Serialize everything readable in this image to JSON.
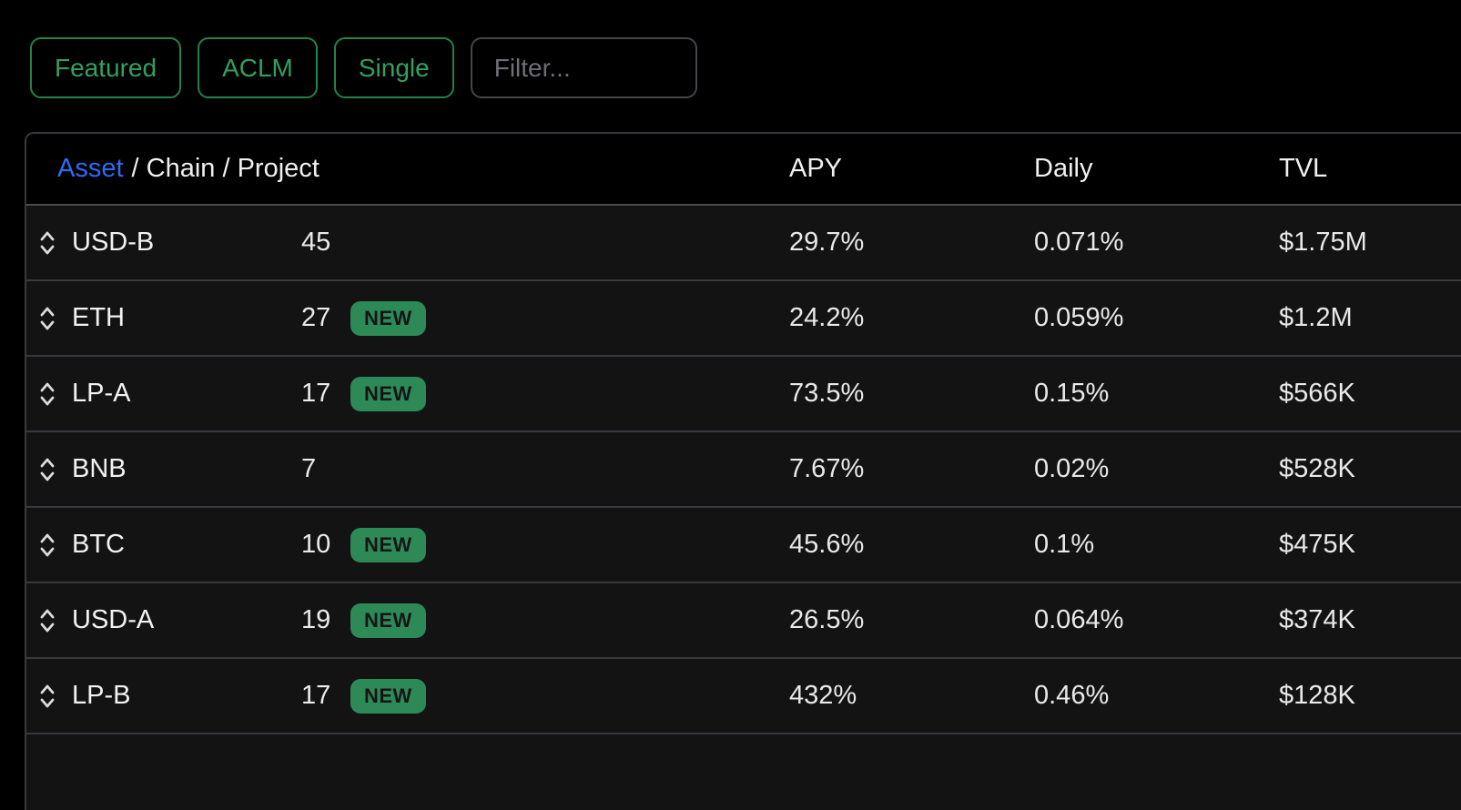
{
  "toolbar": {
    "buttons": [
      {
        "label": "Featured"
      },
      {
        "label": "ACLM"
      },
      {
        "label": "Single"
      }
    ],
    "filter_placeholder": "Filter...",
    "filter_value": ""
  },
  "table": {
    "header": {
      "asset_link": "Asset",
      "asset_rest": "/ Chain / Project",
      "apy": "APY",
      "daily": "Daily",
      "tvl": "TVL"
    },
    "badge_label": "NEW",
    "rows": [
      {
        "asset": "USD-B",
        "count": "45",
        "new": false,
        "apy": "29.7%",
        "daily": "0.071%",
        "tvl": "$1.75M"
      },
      {
        "asset": "ETH",
        "count": "27",
        "new": true,
        "apy": "24.2%",
        "daily": "0.059%",
        "tvl": "$1.2M"
      },
      {
        "asset": "LP-A",
        "count": "17",
        "new": true,
        "apy": "73.5%",
        "daily": "0.15%",
        "tvl": "$566K"
      },
      {
        "asset": "BNB",
        "count": "7",
        "new": false,
        "apy": "7.67%",
        "daily": "0.02%",
        "tvl": "$528K"
      },
      {
        "asset": "BTC",
        "count": "10",
        "new": true,
        "apy": "45.6%",
        "daily": "0.1%",
        "tvl": "$475K"
      },
      {
        "asset": "USD-A",
        "count": "19",
        "new": true,
        "apy": "26.5%",
        "daily": "0.064%",
        "tvl": "$374K"
      },
      {
        "asset": "LP-B",
        "count": "17",
        "new": true,
        "apy": "432%",
        "daily": "0.46%",
        "tvl": "$128K"
      }
    ]
  },
  "colors": {
    "accent_green_text": "#32a05f",
    "accent_green_border": "#238249",
    "badge_green": "#2d8a57",
    "link_blue": "#2d6bf2",
    "row_background": "#131313",
    "page_background": "#000000",
    "separator": "#39393d"
  }
}
